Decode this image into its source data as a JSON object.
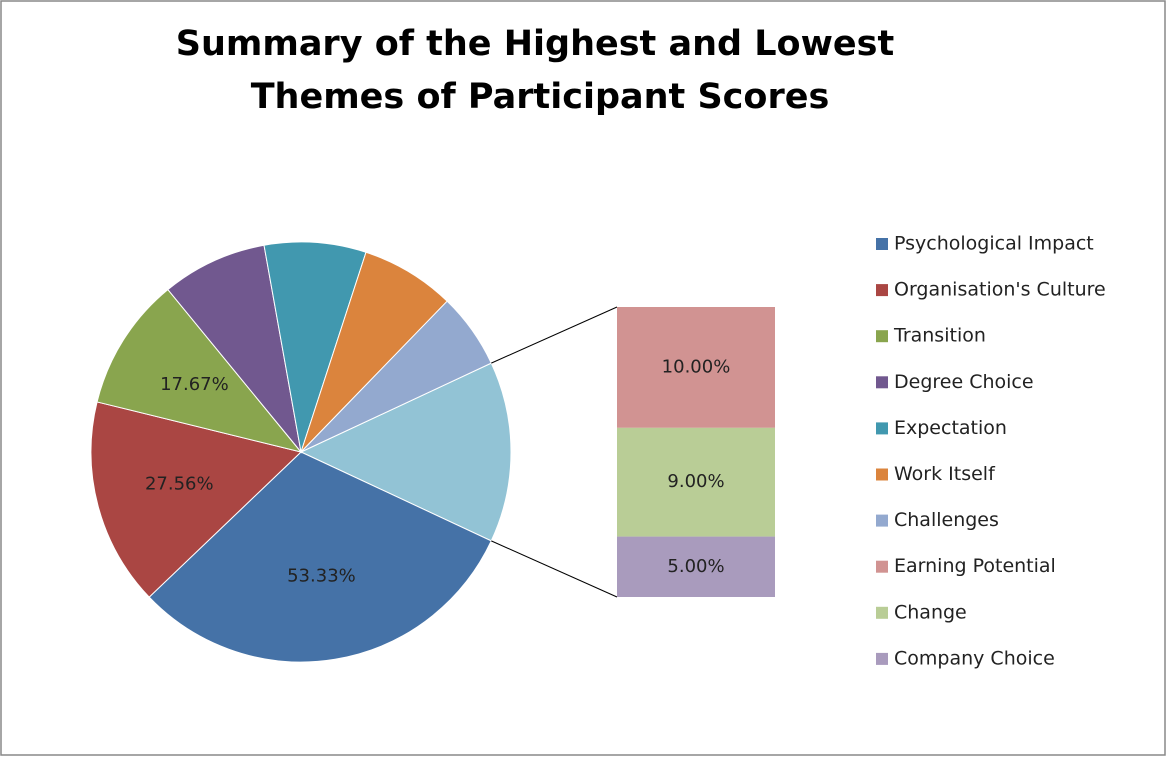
{
  "chart_data": {
    "type": "bar-of-pie",
    "title": [
      "Summary of the Highest and Lowest",
      "Themes of Participant Scores"
    ],
    "categories": [
      "Psychological Impact",
      "Organisation's Culture",
      "Transition",
      "Degree Choice",
      "Expectation",
      "Work Itself",
      "Challenges",
      "Earning Potential",
      "Change",
      "Company Choice"
    ],
    "values": [
      53.33,
      27.56,
      17.67,
      14,
      13.5,
      12.5,
      10,
      10,
      9,
      5
    ],
    "value_labels": [
      "53.33%",
      "27.56%",
      "17.67%",
      null,
      null,
      null,
      null,
      "10.00%",
      "9.00%",
      "5.00%"
    ],
    "colors": [
      "#4572a7",
      "#aa4643",
      "#89a54e",
      "#71588f",
      "#4198af",
      "#db843d",
      "#93a9cf",
      "#d19392",
      "#b9cd96",
      "#a99bbd"
    ],
    "other_color": "#92c3d5",
    "second_plot_count": 3,
    "legend": "right"
  }
}
